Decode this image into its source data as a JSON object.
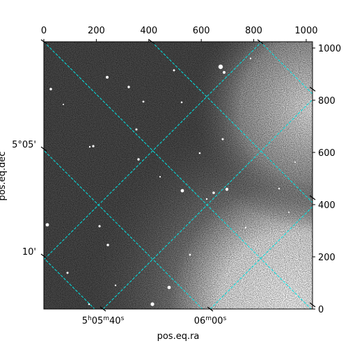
{
  "chart_data": {
    "type": "image",
    "xlabel": "pos.eq.ra",
    "ylabel": "pos.eq.dec",
    "pixel_axes": {
      "x_range": [
        0,
        1024
      ],
      "y_range": [
        0,
        1024
      ],
      "top_ticks": [
        0,
        200,
        400,
        600,
        800,
        1000
      ],
      "right_ticks": [
        0,
        200,
        400,
        600,
        800,
        1000
      ]
    },
    "ra_ticks": [
      "5ʰ05ᵐ40ˢ",
      "06ᵐ00ˢ"
    ],
    "dec_ticks": [
      "5°05'",
      "10'"
    ],
    "grid": true,
    "grid_color": "#00e5e5",
    "colormap": "gray"
  }
}
